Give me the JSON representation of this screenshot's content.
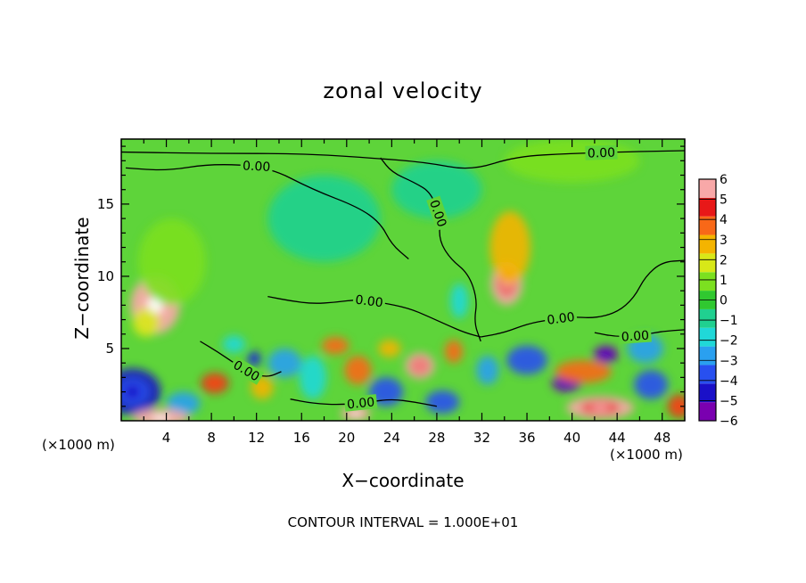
{
  "chart_data": {
    "type": "heatmap",
    "title": "zonal velocity",
    "xlabel": "X−coordinate",
    "ylabel": "Z−coordinate",
    "x_unit": "(×1000 m)",
    "x_unit_right": "(×1000 m)",
    "footnote": "CONTOUR INTERVAL = 1.000E+01",
    "xlim": [
      0,
      50
    ],
    "ylim": [
      0,
      19.5
    ],
    "x_ticks": [
      4,
      8,
      12,
      16,
      20,
      24,
      28,
      32,
      36,
      40,
      44,
      48
    ],
    "y_ticks": [
      5,
      10,
      15
    ],
    "colorbar": {
      "levels": [
        -6,
        -5,
        -4,
        -3,
        -2,
        -1,
        0,
        1,
        2,
        3,
        4,
        5,
        6
      ],
      "colors": [
        "#7a00b0",
        "#1a10c8",
        "#2850f0",
        "#2aa0f0",
        "#20d8d8",
        "#20d090",
        "#30c830",
        "#7ce020",
        "#d8e818",
        "#f4b400",
        "#f86818",
        "#e81818",
        "#f8a8a8"
      ]
    },
    "contour_labels": [
      "0.00",
      "0.00",
      "0.00",
      "0.00",
      "0.00",
      "0.00",
      "0.00",
      "0.00"
    ],
    "blobs": [
      {
        "x": 3,
        "z": 8,
        "sx": 2.2,
        "sz": 2,
        "v": 7
      },
      {
        "x": 2.2,
        "z": 6.8,
        "sx": 1.2,
        "sz": 1,
        "v": 2
      },
      {
        "x": 4.5,
        "z": 11,
        "sx": 3,
        "sz": 3,
        "v": 1.2
      },
      {
        "x": 1,
        "z": 2,
        "sx": 2.5,
        "sz": 1.6,
        "v": -5
      },
      {
        "x": 5.5,
        "z": 1.2,
        "sx": 1.5,
        "sz": 0.8,
        "v": -3
      },
      {
        "x": 3.5,
        "z": 0.2,
        "sx": 2.5,
        "sz": 0.6,
        "v": 7
      },
      {
        "x": 8.3,
        "z": 2.6,
        "sx": 1.2,
        "sz": 0.7,
        "v": 5
      },
      {
        "x": 11.8,
        "z": 4.3,
        "sx": 0.6,
        "sz": 0.5,
        "v": -5.5
      },
      {
        "x": 12.5,
        "z": 2.3,
        "sx": 1,
        "sz": 0.8,
        "v": 3
      },
      {
        "x": 14.5,
        "z": 4,
        "sx": 1.5,
        "sz": 1,
        "v": -3
      },
      {
        "x": 10,
        "z": 5.3,
        "sx": 1,
        "sz": 0.6,
        "v": -2
      },
      {
        "x": 17,
        "z": 3,
        "sx": 1.2,
        "sz": 1.5,
        "v": -2.5
      },
      {
        "x": 19,
        "z": 5.2,
        "sx": 1.2,
        "sz": 0.6,
        "v": 4
      },
      {
        "x": 21,
        "z": 3.5,
        "sx": 1.2,
        "sz": 1,
        "v": 4
      },
      {
        "x": 20.8,
        "z": 0.5,
        "sx": 1.3,
        "sz": 0.5,
        "v": 7
      },
      {
        "x": 23.5,
        "z": 2,
        "sx": 1.5,
        "sz": 1,
        "v": -4
      },
      {
        "x": 23.8,
        "z": 5,
        "sx": 1,
        "sz": 0.6,
        "v": 3
      },
      {
        "x": 26.5,
        "z": 3.8,
        "sx": 1.3,
        "sz": 0.9,
        "v": 5.5
      },
      {
        "x": 29.5,
        "z": 4.8,
        "sx": 0.8,
        "sz": 0.8,
        "v": 4
      },
      {
        "x": 28.5,
        "z": 1.3,
        "sx": 1.5,
        "sz": 0.8,
        "v": -4.5
      },
      {
        "x": 30,
        "z": 8.3,
        "sx": 0.8,
        "sz": 1.2,
        "v": -2
      },
      {
        "x": 34.2,
        "z": 9.5,
        "sx": 1.4,
        "sz": 1.5,
        "v": 6
      },
      {
        "x": 34.5,
        "z": 12,
        "sx": 1.8,
        "sz": 2.5,
        "v": 2.5
      },
      {
        "x": 32.5,
        "z": 3.5,
        "sx": 1,
        "sz": 1,
        "v": -3
      },
      {
        "x": 36,
        "z": 4.2,
        "sx": 1.8,
        "sz": 1,
        "v": -4
      },
      {
        "x": 39.5,
        "z": 2.6,
        "sx": 1.3,
        "sz": 0.6,
        "v": -6
      },
      {
        "x": 43,
        "z": 4.6,
        "sx": 1.1,
        "sz": 0.6,
        "v": -6
      },
      {
        "x": 41,
        "z": 3.4,
        "sx": 2.5,
        "sz": 0.8,
        "v": 4
      },
      {
        "x": 42.5,
        "z": 0.9,
        "sx": 3,
        "sz": 0.8,
        "v": 6
      },
      {
        "x": 46.5,
        "z": 5,
        "sx": 1.6,
        "sz": 1,
        "v": -3
      },
      {
        "x": 47,
        "z": 2.5,
        "sx": 1.5,
        "sz": 1,
        "v": -4
      },
      {
        "x": 49.5,
        "z": 1,
        "sx": 1,
        "sz": 0.8,
        "v": 5
      },
      {
        "x": 40,
        "z": 18,
        "sx": 6,
        "sz": 1.5,
        "v": 1.3
      },
      {
        "x": 18,
        "z": 14,
        "sx": 5,
        "sz": 3,
        "v": -0.9
      },
      {
        "x": 28,
        "z": 16,
        "sx": 4,
        "sz": 2,
        "v": -0.8
      }
    ],
    "contours": [
      {
        "label_index": 0,
        "points": [
          [
            0.4,
            17.5
          ],
          [
            4,
            17.3
          ],
          [
            8,
            17.8
          ],
          [
            13,
            17.6
          ],
          [
            17,
            16
          ],
          [
            21,
            14.8
          ],
          [
            23,
            13.7
          ],
          [
            24,
            12.2
          ],
          [
            25.5,
            11.2
          ]
        ]
      },
      {
        "label_index": 1,
        "points": [
          [
            0,
            18.6
          ],
          [
            8,
            18.5
          ],
          [
            16,
            18.5
          ],
          [
            22,
            18.2
          ],
          [
            27,
            17.9
          ],
          [
            31,
            17.3
          ],
          [
            35,
            18.3
          ],
          [
            40,
            18.5
          ],
          [
            44,
            18.6
          ],
          [
            50,
            18.7
          ]
        ]
      },
      {
        "label_index": 2,
        "points": [
          [
            23,
            18.2
          ],
          [
            24,
            17.2
          ],
          [
            26,
            16.5
          ],
          [
            27.5,
            15.8
          ],
          [
            28.3,
            14
          ],
          [
            28.2,
            12.5
          ],
          [
            29.2,
            11.2
          ],
          [
            30.8,
            10.2
          ],
          [
            31.6,
            8.4
          ],
          [
            31.3,
            6.8
          ],
          [
            31.9,
            5.5
          ]
        ]
      },
      {
        "label_index": 3,
        "points": [
          [
            13,
            8.6
          ],
          [
            15,
            8.3
          ],
          [
            17,
            8.1
          ],
          [
            19,
            8.2
          ],
          [
            21,
            8.4
          ],
          [
            23,
            8.2
          ],
          [
            25.5,
            7.8
          ],
          [
            27.3,
            7.2
          ],
          [
            29,
            6.6
          ],
          [
            30.5,
            6.1
          ],
          [
            31.9,
            5.8
          ]
        ]
      },
      {
        "label_index": 4,
        "points": [
          [
            31.9,
            5.8
          ],
          [
            34,
            6.1
          ],
          [
            36,
            6.7
          ],
          [
            38,
            7
          ],
          [
            40,
            7.2
          ],
          [
            42,
            7.1
          ],
          [
            44,
            7.5
          ],
          [
            45.5,
            8.5
          ],
          [
            46.5,
            10
          ],
          [
            48,
            11
          ],
          [
            50,
            11.1
          ]
        ]
      },
      {
        "label_index": 5,
        "points": [
          [
            42,
            6.1
          ],
          [
            44,
            5.8
          ],
          [
            46,
            5.9
          ],
          [
            48,
            6.2
          ],
          [
            50,
            6.3
          ]
        ]
      },
      {
        "label_index": 6,
        "points": [
          [
            7,
            5.5
          ],
          [
            8.5,
            4.8
          ],
          [
            10,
            4
          ],
          [
            11.5,
            3.3
          ],
          [
            13,
            3
          ],
          [
            14.2,
            3.4
          ]
        ]
      },
      {
        "label_index": 7,
        "points": [
          [
            15,
            1.5
          ],
          [
            17,
            1.2
          ],
          [
            19.5,
            1.1
          ],
          [
            22,
            1.3
          ],
          [
            24,
            1.5
          ],
          [
            26,
            1.3
          ],
          [
            28,
            1
          ]
        ]
      }
    ]
  }
}
